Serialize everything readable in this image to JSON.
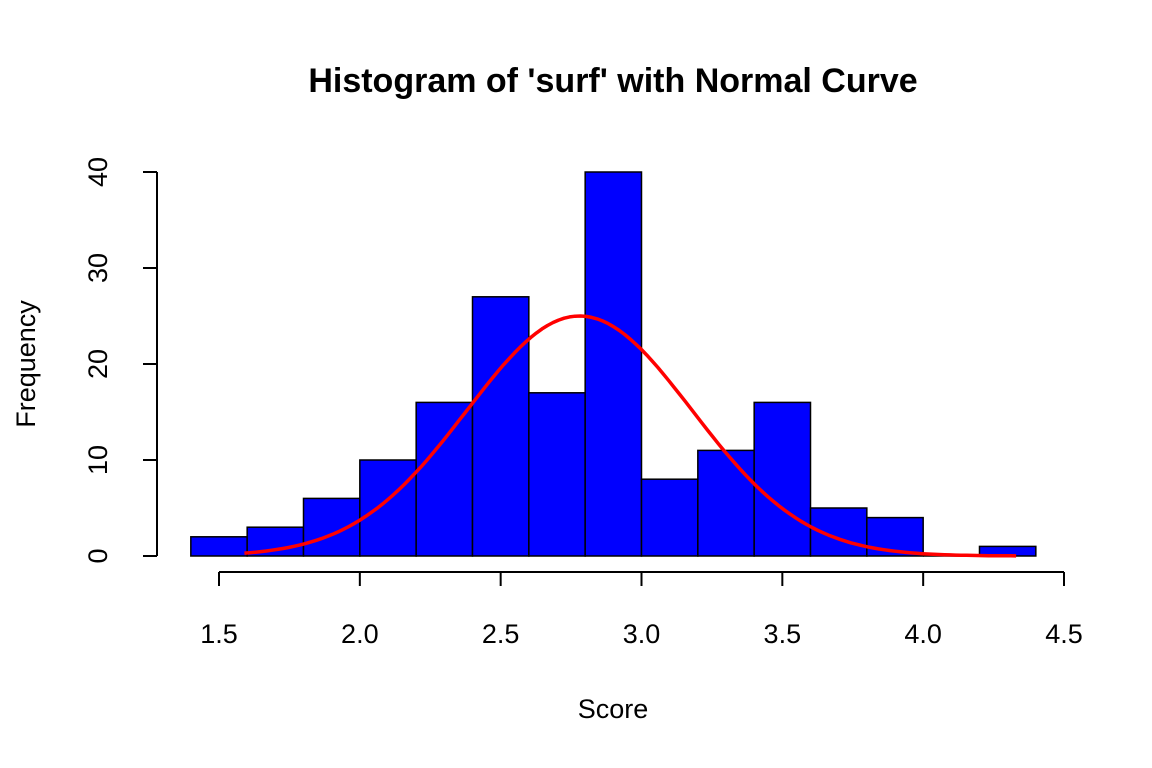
{
  "chart_data": {
    "type": "bar",
    "title": "Histogram of 'surf' with Normal Curve",
    "xlabel": "Score",
    "ylabel": "Frequency",
    "bins": [
      {
        "x0": 1.4,
        "x1": 1.6,
        "count": 2
      },
      {
        "x0": 1.6,
        "x1": 1.8,
        "count": 3
      },
      {
        "x0": 1.8,
        "x1": 2.0,
        "count": 6
      },
      {
        "x0": 2.0,
        "x1": 2.2,
        "count": 10
      },
      {
        "x0": 2.2,
        "x1": 2.4,
        "count": 16
      },
      {
        "x0": 2.4,
        "x1": 2.6,
        "count": 27
      },
      {
        "x0": 2.6,
        "x1": 2.8,
        "count": 17
      },
      {
        "x0": 2.8,
        "x1": 3.0,
        "count": 40
      },
      {
        "x0": 3.0,
        "x1": 3.2,
        "count": 8
      },
      {
        "x0": 3.2,
        "x1": 3.4,
        "count": 11
      },
      {
        "x0": 3.4,
        "x1": 3.6,
        "count": 16
      },
      {
        "x0": 3.6,
        "x1": 3.8,
        "count": 5
      },
      {
        "x0": 3.8,
        "x1": 4.0,
        "count": 4
      },
      {
        "x0": 4.0,
        "x1": 4.2,
        "count": 0
      },
      {
        "x0": 4.2,
        "x1": 4.4,
        "count": 1
      }
    ],
    "normal_curve": {
      "mean": 2.78,
      "peak": 25,
      "sd": 0.4,
      "x_range": [
        1.59,
        4.33
      ]
    },
    "xlim": [
      1.5,
      4.5
    ],
    "ylim": [
      0,
      40
    ],
    "xticks": [
      1.5,
      2.0,
      2.5,
      3.0,
      3.5,
      4.0,
      4.5
    ],
    "xtick_labels": [
      "1.5",
      "2.0",
      "2.5",
      "3.0",
      "3.5",
      "4.0",
      "4.5"
    ],
    "yticks": [
      0,
      10,
      20,
      30,
      40
    ],
    "ytick_labels": [
      "0",
      "10",
      "20",
      "30",
      "40"
    ],
    "grid": false,
    "bar_color": "#0000ff",
    "curve_color": "#ff0000"
  }
}
